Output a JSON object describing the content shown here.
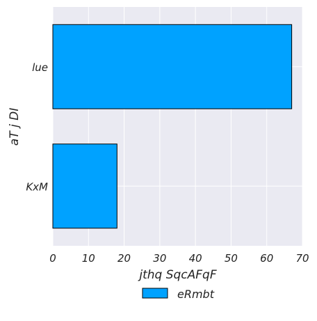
{
  "chart_data": {
    "type": "bar",
    "orientation": "horizontal",
    "categories": [
      "lue",
      "KxM"
    ],
    "series": [
      {
        "name": "eRmbt",
        "values": [
          67,
          18
        ],
        "color": "#00a2ff"
      }
    ],
    "xlabel": "jthq SqcAFqF",
    "ylabel": "aT j DI",
    "xlim": [
      0,
      70
    ],
    "xticks": [
      "0",
      "10",
      "20",
      "30",
      "40",
      "50",
      "60",
      "70"
    ],
    "grid": true,
    "legend_position": "bottom-center",
    "plot_background": "#eaeaf2",
    "grid_color": "#ffffff",
    "bar_edge_color": "#000000"
  }
}
